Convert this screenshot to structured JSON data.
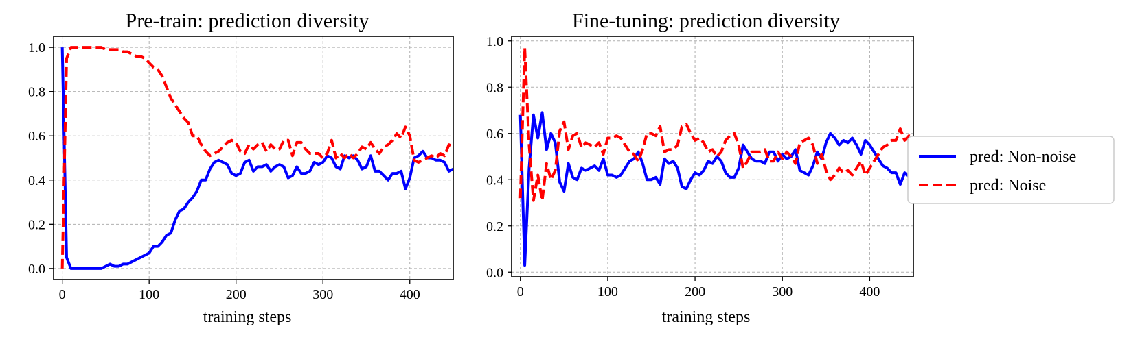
{
  "chart_data": [
    {
      "type": "line",
      "title": "Pre-train: prediction diversity",
      "xlabel": "training steps",
      "ylabel": "",
      "xlim": [
        -10,
        450
      ],
      "ylim": [
        -0.05,
        1.05
      ],
      "xticks": [
        0,
        100,
        200,
        300,
        400
      ],
      "yticks": [
        0.0,
        0.2,
        0.4,
        0.6,
        0.8,
        1.0
      ],
      "grid": true,
      "series": [
        {
          "name": "pred: Non-noise",
          "color": "#0000ff",
          "style": "solid",
          "x": [
            0,
            5,
            10,
            15,
            20,
            25,
            30,
            35,
            40,
            45,
            50,
            55,
            60,
            65,
            70,
            75,
            80,
            85,
            90,
            95,
            100,
            105,
            110,
            115,
            120,
            125,
            130,
            135,
            140,
            145,
            150,
            155,
            160,
            165,
            170,
            175,
            180,
            185,
            190,
            195,
            200,
            205,
            210,
            215,
            220,
            225,
            230,
            235,
            240,
            245,
            250,
            255,
            260,
            265,
            270,
            275,
            280,
            285,
            290,
            295,
            300,
            305,
            310,
            315,
            320,
            325,
            330,
            335,
            340,
            345,
            350,
            355,
            360,
            365,
            370,
            375,
            380,
            385,
            390,
            395,
            400,
            405,
            410,
            415,
            420,
            425,
            430,
            435,
            440,
            445,
            450
          ],
          "values": [
            1.0,
            0.05,
            0.0,
            0.0,
            0.0,
            0.0,
            0.0,
            0.0,
            0.0,
            0.0,
            0.01,
            0.02,
            0.01,
            0.01,
            0.02,
            0.02,
            0.03,
            0.04,
            0.05,
            0.06,
            0.07,
            0.1,
            0.1,
            0.12,
            0.15,
            0.16,
            0.22,
            0.26,
            0.27,
            0.3,
            0.32,
            0.35,
            0.4,
            0.4,
            0.45,
            0.48,
            0.49,
            0.48,
            0.47,
            0.43,
            0.42,
            0.43,
            0.48,
            0.49,
            0.44,
            0.46,
            0.46,
            0.47,
            0.44,
            0.46,
            0.47,
            0.46,
            0.41,
            0.42,
            0.46,
            0.43,
            0.43,
            0.44,
            0.48,
            0.47,
            0.48,
            0.51,
            0.5,
            0.46,
            0.45,
            0.51,
            0.5,
            0.51,
            0.49,
            0.45,
            0.46,
            0.51,
            0.44,
            0.44,
            0.42,
            0.4,
            0.43,
            0.43,
            0.44,
            0.36,
            0.41,
            0.5,
            0.51,
            0.53,
            0.5,
            0.5,
            0.49,
            0.49,
            0.48,
            0.44,
            0.45
          ]
        },
        {
          "name": "pred: Noise",
          "color": "#ff0000",
          "style": "dashed",
          "x": [
            0,
            5,
            10,
            15,
            20,
            25,
            30,
            35,
            40,
            45,
            50,
            55,
            60,
            65,
            70,
            75,
            80,
            85,
            90,
            95,
            100,
            105,
            110,
            115,
            120,
            125,
            130,
            135,
            140,
            145,
            150,
            155,
            160,
            165,
            170,
            175,
            180,
            185,
            190,
            195,
            200,
            205,
            210,
            215,
            220,
            225,
            230,
            235,
            240,
            245,
            250,
            255,
            260,
            265,
            270,
            275,
            280,
            285,
            290,
            295,
            300,
            305,
            310,
            315,
            320,
            325,
            330,
            335,
            340,
            345,
            350,
            355,
            360,
            365,
            370,
            375,
            380,
            385,
            390,
            395,
            400,
            405,
            410,
            415,
            420,
            425,
            430,
            435,
            440,
            445,
            450
          ],
          "values": [
            0.0,
            0.95,
            1.0,
            1.0,
            1.0,
            1.0,
            1.0,
            1.0,
            1.0,
            1.0,
            0.99,
            0.99,
            0.99,
            0.99,
            0.98,
            0.98,
            0.97,
            0.96,
            0.96,
            0.95,
            0.93,
            0.91,
            0.9,
            0.87,
            0.82,
            0.77,
            0.74,
            0.71,
            0.68,
            0.66,
            0.6,
            0.6,
            0.56,
            0.53,
            0.51,
            0.52,
            0.53,
            0.55,
            0.57,
            0.58,
            0.57,
            0.53,
            0.52,
            0.56,
            0.54,
            0.56,
            0.57,
            0.53,
            0.56,
            0.54,
            0.54,
            0.58,
            0.58,
            0.51,
            0.57,
            0.57,
            0.54,
            0.52,
            0.52,
            0.52,
            0.5,
            0.52,
            0.58,
            0.5,
            0.52,
            0.5,
            0.52,
            0.5,
            0.52,
            0.55,
            0.54,
            0.57,
            0.54,
            0.52,
            0.55,
            0.56,
            0.58,
            0.61,
            0.59,
            0.64,
            0.6,
            0.49,
            0.48,
            0.49,
            0.5,
            0.51,
            0.5,
            0.52,
            0.51,
            0.56,
            0.55
          ]
        }
      ]
    },
    {
      "type": "line",
      "title": "Fine-tuning: prediction diversity",
      "xlabel": "training steps",
      "ylabel": "",
      "xlim": [
        -10,
        450
      ],
      "ylim": [
        -0.02,
        1.02
      ],
      "xticks": [
        0,
        100,
        200,
        300,
        400
      ],
      "yticks": [
        0.0,
        0.2,
        0.4,
        0.6,
        0.8,
        1.0
      ],
      "grid": true,
      "series": [
        {
          "name": "pred: Non-noise",
          "color": "#0000ff",
          "style": "solid",
          "x": [
            0,
            5,
            10,
            15,
            20,
            25,
            30,
            35,
            40,
            45,
            50,
            55,
            60,
            65,
            70,
            75,
            80,
            85,
            90,
            95,
            100,
            105,
            110,
            115,
            120,
            125,
            130,
            135,
            140,
            145,
            150,
            155,
            160,
            165,
            170,
            175,
            180,
            185,
            190,
            195,
            200,
            205,
            210,
            215,
            220,
            225,
            230,
            235,
            240,
            245,
            250,
            255,
            260,
            265,
            270,
            275,
            280,
            285,
            290,
            295,
            300,
            305,
            310,
            315,
            320,
            325,
            330,
            335,
            340,
            345,
            350,
            355,
            360,
            365,
            370,
            375,
            380,
            385,
            390,
            395,
            400,
            405,
            410,
            415,
            420,
            425,
            430,
            435,
            440,
            445,
            450
          ],
          "values": [
            0.68,
            0.03,
            0.45,
            0.68,
            0.58,
            0.69,
            0.53,
            0.6,
            0.56,
            0.39,
            0.35,
            0.47,
            0.41,
            0.4,
            0.45,
            0.44,
            0.45,
            0.46,
            0.44,
            0.49,
            0.42,
            0.42,
            0.41,
            0.42,
            0.45,
            0.48,
            0.49,
            0.52,
            0.47,
            0.4,
            0.4,
            0.41,
            0.38,
            0.49,
            0.47,
            0.48,
            0.45,
            0.37,
            0.36,
            0.4,
            0.43,
            0.42,
            0.44,
            0.48,
            0.47,
            0.5,
            0.48,
            0.43,
            0.41,
            0.41,
            0.45,
            0.55,
            0.52,
            0.49,
            0.48,
            0.48,
            0.47,
            0.52,
            0.52,
            0.48,
            0.51,
            0.49,
            0.5,
            0.53,
            0.44,
            0.43,
            0.42,
            0.46,
            0.52,
            0.49,
            0.56,
            0.6,
            0.58,
            0.55,
            0.57,
            0.56,
            0.58,
            0.55,
            0.51,
            0.57,
            0.55,
            0.52,
            0.49,
            0.46,
            0.45,
            0.43,
            0.43,
            0.38,
            0.43,
            0.41,
            0.42
          ]
        },
        {
          "name": "pred: Noise",
          "color": "#ff0000",
          "style": "dashed",
          "x": [
            0,
            5,
            10,
            15,
            20,
            25,
            30,
            35,
            40,
            45,
            50,
            55,
            60,
            65,
            70,
            75,
            80,
            85,
            90,
            95,
            100,
            105,
            110,
            115,
            120,
            125,
            130,
            135,
            140,
            145,
            150,
            155,
            160,
            165,
            170,
            175,
            180,
            185,
            190,
            195,
            200,
            205,
            210,
            215,
            220,
            225,
            230,
            235,
            240,
            245,
            250,
            255,
            260,
            265,
            270,
            275,
            280,
            285,
            290,
            295,
            300,
            305,
            310,
            315,
            320,
            325,
            330,
            335,
            340,
            345,
            350,
            355,
            360,
            365,
            370,
            375,
            380,
            385,
            390,
            395,
            400,
            405,
            410,
            415,
            420,
            425,
            430,
            435,
            440,
            445,
            450
          ],
          "values": [
            0.32,
            0.97,
            0.55,
            0.31,
            0.42,
            0.31,
            0.47,
            0.4,
            0.44,
            0.61,
            0.65,
            0.53,
            0.59,
            0.6,
            0.54,
            0.56,
            0.55,
            0.54,
            0.56,
            0.51,
            0.58,
            0.58,
            0.59,
            0.58,
            0.55,
            0.52,
            0.51,
            0.48,
            0.53,
            0.6,
            0.6,
            0.59,
            0.63,
            0.52,
            0.53,
            0.53,
            0.55,
            0.63,
            0.64,
            0.6,
            0.57,
            0.58,
            0.56,
            0.52,
            0.53,
            0.5,
            0.52,
            0.57,
            0.59,
            0.6,
            0.55,
            0.45,
            0.48,
            0.52,
            0.52,
            0.52,
            0.53,
            0.48,
            0.48,
            0.52,
            0.49,
            0.52,
            0.5,
            0.47,
            0.56,
            0.57,
            0.58,
            0.55,
            0.47,
            0.51,
            0.44,
            0.4,
            0.42,
            0.45,
            0.43,
            0.44,
            0.42,
            0.45,
            0.48,
            0.42,
            0.45,
            0.48,
            0.51,
            0.54,
            0.55,
            0.57,
            0.57,
            0.62,
            0.57,
            0.59,
            0.58
          ]
        }
      ]
    }
  ]
}
